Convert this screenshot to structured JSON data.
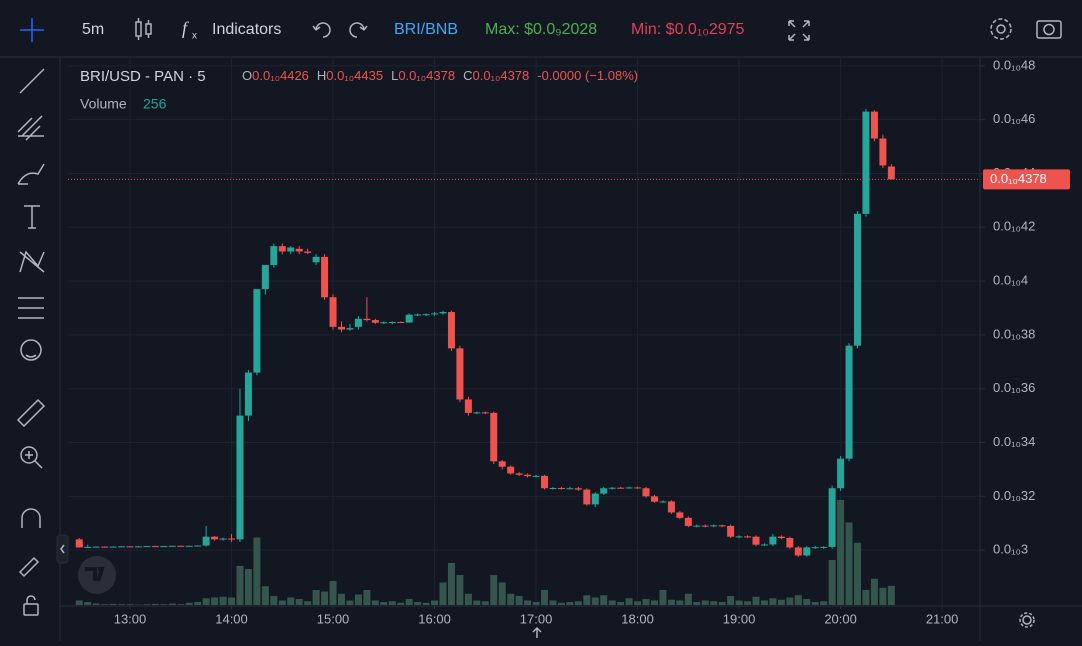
{
  "toolbar": {
    "interval": "5m",
    "indicators": "Indicators",
    "pair": "BRI/BNB",
    "max": "Max: $0.0₉2028",
    "min": "Min: $0.0₁₀2975"
  },
  "chart_data": {
    "type": "candlestick",
    "header": {
      "title": "BRI/USD - PAN · 5",
      "open_label": "O",
      "open": "0.0₁₀4426",
      "high_label": "H",
      "high": "0.0₁₀4435",
      "low_label": "L",
      "low": "0.0₁₀4378",
      "close_label": "C",
      "close": "0.0₁₀4378",
      "change": "-0.0000 (−1.08%)",
      "volume_label": "Volume"
    },
    "up_color": "#26a69a",
    "down_color": "#ef5350",
    "volume_color": "#34564c",
    "grid": true,
    "xlim": [
      743.35,
      1282.4
    ],
    "xticks": [
      {
        "value": 780,
        "label": "13:00"
      },
      {
        "value": 840,
        "label": "14:00"
      },
      {
        "value": 900,
        "label": "15:00"
      },
      {
        "value": 960,
        "label": "16:00"
      },
      {
        "value": 1020,
        "label": "17:00"
      },
      {
        "value": 1080,
        "label": "18:00"
      },
      {
        "value": 1140,
        "label": "19:00"
      },
      {
        "value": 1200,
        "label": "20:00"
      },
      {
        "value": 1260,
        "label": "21:00"
      }
    ],
    "ylim": [
      2.796e-11,
      4.833e-11
    ],
    "yticks": [
      {
        "value": 4.8e-11,
        "label": "0.0₁₀48"
      },
      {
        "value": 4.6e-11,
        "label": "0.0₁₀46"
      },
      {
        "value": 4.4e-11,
        "label": "0.0₁₀44"
      },
      {
        "value": 4.2e-11,
        "label": "0.0₁₀42"
      },
      {
        "value": 4e-11,
        "label": "0.0₁₀4"
      },
      {
        "value": 3.8e-11,
        "label": "0.0₁₀38"
      },
      {
        "value": 3.6e-11,
        "label": "0.0₁₀36"
      },
      {
        "value": 3.4e-11,
        "label": "0.0₁₀34"
      },
      {
        "value": 3.2e-11,
        "label": "0.0₁₀32"
      },
      {
        "value": 3e-11,
        "label": "0.0₁₀3"
      }
    ],
    "last_price": {
      "value": 4.378e-11,
      "label": "0.0₁₀4378"
    },
    "x": [
      750,
      755,
      760,
      765,
      770,
      775,
      780,
      785,
      790,
      795,
      800,
      805,
      810,
      815,
      820,
      825,
      830,
      835,
      840,
      845,
      850,
      855,
      860,
      865,
      870,
      875,
      880,
      885,
      890,
      895,
      900,
      905,
      910,
      915,
      920,
      925,
      930,
      935,
      940,
      945,
      950,
      955,
      960,
      965,
      970,
      975,
      980,
      985,
      990,
      995,
      1000,
      1005,
      1010,
      1015,
      1020,
      1025,
      1030,
      1035,
      1040,
      1045,
      1050,
      1055,
      1060,
      1065,
      1070,
      1075,
      1080,
      1085,
      1090,
      1095,
      1100,
      1105,
      1110,
      1115,
      1120,
      1125,
      1130,
      1135,
      1140,
      1145,
      1150,
      1155,
      1160,
      1165,
      1170,
      1175,
      1180,
      1185,
      1190,
      1195,
      1200,
      1205,
      1210,
      1215,
      1220,
      1225,
      1230
    ],
    "ohlc": [
      [
        3.04e-11,
        3.045e-11,
        3.01e-11,
        3.01e-11
      ],
      [
        3.01e-11,
        3.02e-11,
        3.008e-11,
        3.012e-11
      ],
      [
        3.012e-11,
        3.014e-11,
        3.011e-11,
        3.013e-11
      ],
      [
        3.013e-11,
        3.014e-11,
        3.011e-11,
        3.012e-11
      ],
      [
        3.012e-11,
        3.014e-11,
        3.011e-11,
        3.013e-11
      ],
      [
        3.013e-11,
        3.015e-11,
        3.012e-11,
        3.014e-11
      ],
      [
        3.014e-11,
        3.015e-11,
        3.012e-11,
        3.013e-11
      ],
      [
        3.013e-11,
        3.015e-11,
        3.012e-11,
        3.014e-11
      ],
      [
        3.014e-11,
        3.016e-11,
        3.013e-11,
        3.015e-11
      ],
      [
        3.015e-11,
        3.016e-11,
        3.013e-11,
        3.014e-11
      ],
      [
        3.014e-11,
        3.016e-11,
        3.013e-11,
        3.015e-11
      ],
      [
        3.015e-11,
        3.017e-11,
        3.014e-11,
        3.016e-11
      ],
      [
        3.016e-11,
        3.017e-11,
        3.014e-11,
        3.015e-11
      ],
      [
        3.015e-11,
        3.017e-11,
        3.014e-11,
        3.016e-11
      ],
      [
        3.016e-11,
        3.018e-11,
        3.014e-11,
        3.017e-11
      ],
      [
        3.017e-11,
        3.09e-11,
        3.013e-11,
        3.05e-11
      ],
      [
        3.05e-11,
        3.052e-11,
        3.035e-11,
        3.04e-11
      ],
      [
        3.04e-11,
        3.046e-11,
        3.035e-11,
        3.043e-11
      ],
      [
        3.043e-11,
        3.06e-11,
        3.03e-11,
        3.04e-11
      ],
      [
        3.04e-11,
        3.6e-11,
        3.03e-11,
        3.5e-11
      ],
      [
        3.5e-11,
        3.67e-11,
        3.48e-11,
        3.66e-11
      ],
      [
        3.66e-11,
        3.97e-11,
        3.65e-11,
        3.97e-11
      ],
      [
        3.97e-11,
        4.06e-11,
        3.95e-11,
        4.06e-11
      ],
      [
        4.06e-11,
        4.14e-11,
        4.05e-11,
        4.13e-11
      ],
      [
        4.13e-11,
        4.14e-11,
        4.1e-11,
        4.11e-11
      ],
      [
        4.11e-11,
        4.13e-11,
        4.1e-11,
        4.125e-11
      ],
      [
        4.12e-11,
        4.13e-11,
        4.1e-11,
        4.11e-11
      ],
      [
        4.11e-11,
        4.12e-11,
        4.1e-11,
        4.105e-11
      ],
      [
        4.07e-11,
        4.1e-11,
        4.06e-11,
        4.09e-11
      ],
      [
        4.09e-11,
        4.1e-11,
        3.93e-11,
        3.94e-11
      ],
      [
        3.94e-11,
        3.95e-11,
        3.82e-11,
        3.83e-11
      ],
      [
        3.83e-11,
        3.85e-11,
        3.81e-11,
        3.82e-11
      ],
      [
        3.82e-11,
        3.84e-11,
        3.815e-11,
        3.825e-11
      ],
      [
        3.83e-11,
        3.87e-11,
        3.82e-11,
        3.86e-11
      ],
      [
        3.86e-11,
        3.94e-11,
        3.85e-11,
        3.855e-11
      ],
      [
        3.855e-11,
        3.86e-11,
        3.84e-11,
        3.845e-11
      ],
      [
        3.845e-11,
        3.85e-11,
        3.84e-11,
        3.847e-11
      ],
      [
        3.847e-11,
        3.85e-11,
        3.84e-11,
        3.848e-11
      ],
      [
        3.848e-11,
        3.85e-11,
        3.845e-11,
        3.846e-11
      ],
      [
        3.846e-11,
        3.88e-11,
        3.845e-11,
        3.875e-11
      ],
      [
        3.875e-11,
        3.88e-11,
        3.87e-11,
        3.876e-11
      ],
      [
        3.876e-11,
        3.88e-11,
        3.87e-11,
        3.877e-11
      ],
      [
        3.877e-11,
        3.885e-11,
        3.87e-11,
        3.88e-11
      ],
      [
        3.88e-11,
        3.89e-11,
        3.875e-11,
        3.885e-11
      ],
      [
        3.885e-11,
        3.89e-11,
        3.74e-11,
        3.75e-11
      ],
      [
        3.75e-11,
        3.76e-11,
        3.55e-11,
        3.56e-11
      ],
      [
        3.56e-11,
        3.57e-11,
        3.5e-11,
        3.51e-11
      ],
      [
        3.51e-11,
        3.515e-11,
        3.505e-11,
        3.512e-11
      ],
      [
        3.512e-11,
        3.515e-11,
        3.505e-11,
        3.51e-11
      ],
      [
        3.51e-11,
        3.515e-11,
        3.32e-11,
        3.33e-11
      ],
      [
        3.33e-11,
        3.335e-11,
        3.3e-11,
        3.31e-11
      ],
      [
        3.31e-11,
        3.315e-11,
        3.28e-11,
        3.285e-11
      ],
      [
        3.285e-11,
        3.29e-11,
        3.275e-11,
        3.28e-11
      ],
      [
        3.28e-11,
        3.285e-11,
        3.27e-11,
        3.275e-11
      ],
      [
        3.275e-11,
        3.28e-11,
        3.27e-11,
        3.276e-11
      ],
      [
        3.276e-11,
        3.28e-11,
        3.225e-11,
        3.23e-11
      ],
      [
        3.23e-11,
        3.235e-11,
        3.225e-11,
        3.231e-11
      ],
      [
        3.231e-11,
        3.235e-11,
        3.225e-11,
        3.229e-11
      ],
      [
        3.229e-11,
        3.235e-11,
        3.225e-11,
        3.23e-11
      ],
      [
        3.23e-11,
        3.235e-11,
        3.22e-11,
        3.225e-11
      ],
      [
        3.225e-11,
        3.23e-11,
        3.165e-11,
        3.17e-11
      ],
      [
        3.17e-11,
        3.215e-11,
        3.16e-11,
        3.21e-11
      ],
      [
        3.21e-11,
        3.235e-11,
        3.205e-11,
        3.23e-11
      ],
      [
        3.23e-11,
        3.235e-11,
        3.225e-11,
        3.232e-11
      ],
      [
        3.232e-11,
        3.235e-11,
        3.228e-11,
        3.231e-11
      ],
      [
        3.231e-11,
        3.236e-11,
        3.228e-11,
        3.233e-11
      ],
      [
        3.233e-11,
        3.236e-11,
        3.228e-11,
        3.23e-11
      ],
      [
        3.23e-11,
        3.235e-11,
        3.195e-11,
        3.2e-11
      ],
      [
        3.2e-11,
        3.205e-11,
        3.175e-11,
        3.18e-11
      ],
      [
        3.18e-11,
        3.185e-11,
        3.175e-11,
        3.181e-11
      ],
      [
        3.181e-11,
        3.185e-11,
        3.135e-11,
        3.14e-11
      ],
      [
        3.14e-11,
        3.145e-11,
        3.115e-11,
        3.12e-11
      ],
      [
        3.12e-11,
        3.125e-11,
        3.085e-11,
        3.09e-11
      ],
      [
        3.09e-11,
        3.095e-11,
        3.085e-11,
        3.091e-11
      ],
      [
        3.091e-11,
        3.095e-11,
        3.085e-11,
        3.09e-11
      ],
      [
        3.09e-11,
        3.095e-11,
        3.085e-11,
        3.092e-11
      ],
      [
        3.092e-11,
        3.095e-11,
        3.085e-11,
        3.09e-11
      ],
      [
        3.09e-11,
        3.095e-11,
        3.045e-11,
        3.05e-11
      ],
      [
        3.05e-11,
        3.055e-11,
        3.045e-11,
        3.051e-11
      ],
      [
        3.051e-11,
        3.055e-11,
        3.045e-11,
        3.05e-11
      ],
      [
        3.05e-11,
        3.055e-11,
        3.015e-11,
        3.02e-11
      ],
      [
        3.02e-11,
        3.025e-11,
        3.015e-11,
        3.021e-11
      ],
      [
        3.021e-11,
        3.06e-11,
        3.015e-11,
        3.05e-11
      ],
      [
        3.05e-11,
        3.055e-11,
        3.04e-11,
        3.045e-11
      ],
      [
        3.045e-11,
        3.05e-11,
        3.005e-11,
        3.01e-11
      ],
      [
        3.01e-11,
        3.015e-11,
        2.975e-11,
        2.98e-11
      ],
      [
        2.98e-11,
        3.015e-11,
        2.975e-11,
        3.01e-11
      ],
      [
        3.01e-11,
        3.015e-11,
        3.005e-11,
        3.011e-11
      ],
      [
        3.011e-11,
        3.015e-11,
        3.005e-11,
        3.012e-11
      ],
      [
        3.012e-11,
        3.24e-11,
        3.005e-11,
        3.23e-11
      ],
      [
        3.23e-11,
        3.35e-11,
        3.22e-11,
        3.34e-11
      ],
      [
        3.34e-11,
        3.77e-11,
        3.33e-11,
        3.76e-11
      ],
      [
        3.76e-11,
        4.26e-11,
        3.75e-11,
        4.25e-11
      ],
      [
        4.25e-11,
        4.64e-11,
        4.24e-11,
        4.63e-11
      ],
      [
        4.63e-11,
        4.635e-11,
        4.52e-11,
        4.53e-11
      ],
      [
        4.53e-11,
        4.545e-11,
        4.42e-11,
        4.43e-11
      ],
      [
        4.426e-11,
        4.435e-11,
        4.378e-11,
        4.378e-11
      ]
    ],
    "volume": [
      60,
      40,
      20,
      10,
      15,
      10,
      10,
      5,
      10,
      15,
      10,
      20,
      10,
      30,
      40,
      90,
      100,
      110,
      100,
      520,
      480,
      900,
      250,
      120,
      60,
      100,
      80,
      50,
      200,
      180,
      320,
      150,
      60,
      140,
      200,
      60,
      40,
      50,
      30,
      80,
      40,
      30,
      60,
      300,
      560,
      400,
      150,
      60,
      50,
      400,
      300,
      150,
      120,
      60,
      40,
      200,
      60,
      30,
      40,
      50,
      130,
      100,
      130,
      60,
      40,
      90,
      50,
      80,
      60,
      200,
      70,
      60,
      150,
      40,
      60,
      50,
      40,
      120,
      60,
      50,
      110,
      60,
      90,
      70,
      100,
      130,
      80,
      40,
      50,
      600,
      1400,
      1100,
      830,
      200,
      350,
      230,
      256
    ]
  }
}
